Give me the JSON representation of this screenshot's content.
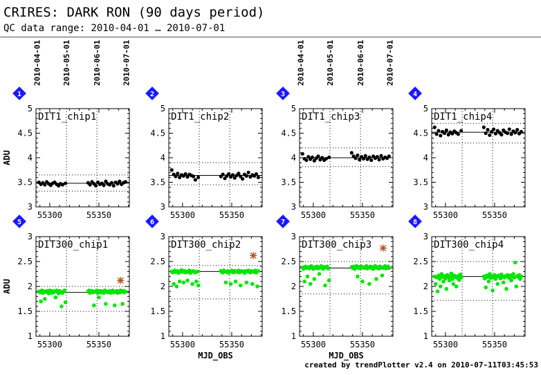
{
  "header": {
    "title": "CRIRES: DARK RON (90 days period)",
    "subtitle": "QC data range: 2010-04-01 … 2010-07-01"
  },
  "footer": "created by trendPlotter v2.4 on 2010-07-11T03:45:53",
  "colors": {
    "black_points": "#000000",
    "green_points": "#00e600",
    "outlier": "#b84a1a",
    "badge": "#1a1aff"
  },
  "chart_data": {
    "type": "scatter",
    "date_ticks": [
      "2010-04-01",
      "2010-05-01",
      "2010-06-01",
      "2010-07-01"
    ],
    "date_tick_mjd": [
      55287,
      55317,
      55348,
      55378
    ],
    "xlim": [
      55286,
      55381
    ],
    "x_ticks": [
      55300,
      55350
    ],
    "x_tick_labels": [
      "55300",
      "55350"
    ],
    "xlabel": "MJD_OBS",
    "ylabel": "ADU",
    "panels": [
      {
        "badge": "1",
        "label": "DIT1_chip1",
        "ylim": [
          3,
          5
        ],
        "yticks": [
          3,
          3.5,
          4,
          4.5,
          5
        ],
        "ytick_labels": [
          "3",
          "3.5",
          "4",
          "4.5",
          "5"
        ],
        "show_date_ticks": true,
        "show_ylabel": true,
        "show_xlabel": false,
        "color": "black",
        "median": 3.48,
        "limits": [
          3.32,
          3.65
        ],
        "outliers": [],
        "x": [
          55289,
          55291,
          55293,
          55295,
          55297,
          55299,
          55301,
          55303,
          55305,
          55307,
          55309,
          55311,
          55313,
          55316,
          55339,
          55341,
          55343,
          55345,
          55347,
          55349,
          55351,
          55353,
          55355,
          55357,
          55359,
          55361,
          55363,
          55365,
          55367,
          55369,
          55371,
          55373,
          55375,
          55377
        ],
        "y": [
          3.5,
          3.46,
          3.49,
          3.45,
          3.51,
          3.47,
          3.44,
          3.48,
          3.5,
          3.46,
          3.43,
          3.47,
          3.45,
          3.48,
          3.49,
          3.45,
          3.51,
          3.47,
          3.43,
          3.5,
          3.46,
          3.48,
          3.44,
          3.52,
          3.47,
          3.45,
          3.49,
          3.43,
          3.5,
          3.47,
          3.52,
          3.46,
          3.49,
          3.51
        ]
      },
      {
        "badge": "2",
        "label": "DIT1_chip2",
        "ylim": [
          3,
          5
        ],
        "yticks": [
          3,
          3.5,
          4,
          4.5,
          5
        ],
        "ytick_labels": [
          "3",
          "3.5",
          "4",
          "4.5",
          "5"
        ],
        "show_date_ticks": false,
        "show_ylabel": false,
        "show_xlabel": false,
        "color": "black",
        "median": 3.64,
        "limits": [
          3.45,
          3.9
        ],
        "outliers": [],
        "x": [
          55289,
          55291,
          55293,
          55295,
          55297,
          55299,
          55301,
          55303,
          55305,
          55307,
          55309,
          55311,
          55313,
          55316,
          55339,
          55341,
          55343,
          55345,
          55347,
          55349,
          55351,
          55353,
          55355,
          55357,
          55359,
          55361,
          55363,
          55365,
          55367,
          55369,
          55371,
          55373,
          55375,
          55377
        ],
        "y": [
          3.75,
          3.66,
          3.62,
          3.68,
          3.6,
          3.65,
          3.63,
          3.67,
          3.61,
          3.66,
          3.64,
          3.62,
          3.55,
          3.6,
          3.62,
          3.66,
          3.58,
          3.63,
          3.67,
          3.61,
          3.65,
          3.59,
          3.64,
          3.68,
          3.62,
          3.57,
          3.66,
          3.63,
          3.7,
          3.61,
          3.65,
          3.63,
          3.67,
          3.6
        ]
      },
      {
        "badge": "3",
        "label": "DIT1_chip3",
        "ylim": [
          3,
          5
        ],
        "yticks": [
          3,
          3.5,
          4,
          4.5,
          5
        ],
        "ytick_labels": [
          "3",
          "3.5",
          "4",
          "4.5",
          "5"
        ],
        "show_date_ticks": true,
        "show_ylabel": false,
        "show_xlabel": false,
        "color": "black",
        "median": 4.0,
        "limits": [
          3.82,
          4.2
        ],
        "outliers": [],
        "x": [
          55289,
          55291,
          55293,
          55295,
          55297,
          55299,
          55301,
          55303,
          55305,
          55307,
          55309,
          55311,
          55313,
          55316,
          55339,
          55341,
          55343,
          55345,
          55347,
          55349,
          55351,
          55353,
          55355,
          55357,
          55359,
          55361,
          55363,
          55365,
          55367,
          55369,
          55371,
          55373,
          55375,
          55377
        ],
        "y": [
          4.08,
          3.98,
          3.95,
          4.02,
          3.97,
          4.01,
          3.94,
          3.99,
          4.03,
          3.96,
          4.0,
          3.95,
          3.98,
          4.01,
          4.1,
          4.03,
          3.99,
          4.05,
          3.96,
          4.02,
          3.98,
          4.04,
          3.97,
          4.01,
          3.95,
          4.03,
          3.99,
          4.02,
          3.96,
          4.04,
          3.98,
          4.01,
          3.99,
          4.03
        ]
      },
      {
        "badge": "4",
        "label": "DIT1_chip4",
        "ylim": [
          3,
          5
        ],
        "yticks": [
          3,
          3.5,
          4,
          4.5,
          5
        ],
        "ytick_labels": [
          "3",
          "3.5",
          "4",
          "4.5",
          "5"
        ],
        "show_date_ticks": false,
        "show_ylabel": false,
        "show_xlabel": false,
        "color": "black",
        "median": 4.52,
        "limits": [
          4.3,
          4.7
        ],
        "outliers": [],
        "x": [
          55289,
          55291,
          55293,
          55295,
          55297,
          55299,
          55301,
          55303,
          55305,
          55307,
          55309,
          55311,
          55313,
          55316,
          55339,
          55341,
          55343,
          55345,
          55347,
          55349,
          55351,
          55353,
          55355,
          55357,
          55359,
          55361,
          55363,
          55365,
          55367,
          55369,
          55371,
          55373,
          55375,
          55377
        ],
        "y": [
          4.62,
          4.48,
          4.55,
          4.45,
          4.53,
          4.5,
          4.56,
          4.47,
          4.52,
          4.49,
          4.54,
          4.51,
          4.48,
          4.55,
          4.62,
          4.5,
          4.57,
          4.46,
          4.53,
          4.58,
          4.49,
          4.55,
          4.51,
          4.47,
          4.56,
          4.52,
          4.5,
          4.58,
          4.48,
          4.54,
          4.51,
          4.57,
          4.49,
          4.53
        ]
      },
      {
        "badge": "5",
        "label": "DIT300_chip1",
        "ylim": [
          1,
          3
        ],
        "yticks": [
          1,
          1.5,
          2,
          2.5,
          3
        ],
        "ytick_labels": [
          "1",
          "1.5",
          "2",
          "2.5",
          "3"
        ],
        "show_date_ticks": false,
        "show_ylabel": true,
        "show_xlabel": false,
        "color": "green",
        "median": 1.88,
        "limits": [
          1.5,
          2.0
        ],
        "outliers": [
          {
            "x": 55372,
            "y": 2.12
          }
        ],
        "x": [
          55289,
          55290,
          55291,
          55292,
          55293,
          55294,
          55295,
          55296,
          55297,
          55298,
          55299,
          55300,
          55301,
          55302,
          55303,
          55304,
          55305,
          55306,
          55307,
          55308,
          55309,
          55310,
          55311,
          55312,
          55313,
          55314,
          55315,
          55316,
          55339,
          55340,
          55341,
          55342,
          55343,
          55344,
          55345,
          55346,
          55347,
          55348,
          55349,
          55350,
          55351,
          55352,
          55353,
          55354,
          55355,
          55356,
          55357,
          55358,
          55359,
          55360,
          55361,
          55362,
          55363,
          55364,
          55365,
          55366,
          55367,
          55368,
          55369,
          55370,
          55371,
          55372,
          55373,
          55374,
          55375,
          55376,
          55377
        ],
        "y": [
          1.9,
          1.88,
          1.7,
          1.92,
          1.87,
          1.9,
          1.75,
          1.89,
          1.91,
          1.88,
          1.86,
          1.92,
          1.89,
          1.87,
          1.91,
          1.88,
          1.9,
          1.78,
          1.92,
          1.89,
          1.86,
          1.91,
          1.88,
          1.6,
          1.87,
          1.9,
          1.92,
          1.68,
          1.9,
          1.92,
          1.87,
          1.89,
          1.91,
          1.88,
          1.62,
          1.9,
          1.89,
          1.92,
          1.87,
          1.78,
          1.91,
          1.88,
          1.9,
          1.89,
          1.87,
          1.92,
          1.65,
          1.9,
          1.88,
          1.89,
          1.91,
          1.87,
          1.9,
          1.92,
          1.88,
          1.62,
          1.89,
          1.91,
          1.87,
          1.9,
          1.88,
          1.92,
          1.89,
          1.65,
          1.91,
          1.88,
          1.9
        ]
      },
      {
        "badge": "6",
        "label": "DIT300_chip2",
        "ylim": [
          1,
          3
        ],
        "yticks": [
          1,
          1.5,
          2,
          2.5,
          3
        ],
        "ytick_labels": [
          "1",
          "1.5",
          "2",
          "2.5",
          "3"
        ],
        "show_date_ticks": false,
        "show_ylabel": false,
        "show_xlabel": true,
        "color": "green",
        "median": 2.3,
        "limits": [
          1.75,
          2.42
        ],
        "outliers": [
          {
            "x": 55372,
            "y": 2.62
          }
        ],
        "x": [
          55289,
          55290,
          55291,
          55292,
          55293,
          55294,
          55295,
          55296,
          55297,
          55298,
          55299,
          55300,
          55301,
          55302,
          55303,
          55304,
          55305,
          55306,
          55307,
          55308,
          55309,
          55310,
          55311,
          55312,
          55313,
          55314,
          55315,
          55316,
          55339,
          55340,
          55341,
          55342,
          55343,
          55344,
          55345,
          55346,
          55347,
          55348,
          55349,
          55350,
          55351,
          55352,
          55353,
          55354,
          55355,
          55356,
          55357,
          55358,
          55359,
          55360,
          55361,
          55362,
          55363,
          55364,
          55365,
          55366,
          55367,
          55368,
          55369,
          55370,
          55371,
          55372,
          55373,
          55374,
          55375,
          55376,
          55377
        ],
        "y": [
          2.3,
          2.28,
          2.05,
          2.32,
          2.29,
          2.0,
          2.31,
          2.27,
          2.1,
          2.3,
          2.33,
          2.29,
          2.08,
          2.31,
          2.28,
          2.3,
          2.12,
          2.29,
          2.32,
          2.27,
          2.3,
          2.05,
          2.31,
          2.29,
          2.28,
          2.1,
          2.3,
          2.02,
          2.31,
          2.29,
          2.28,
          2.32,
          2.3,
          2.08,
          2.29,
          2.31,
          2.27,
          2.3,
          2.05,
          2.32,
          2.29,
          2.28,
          2.31,
          2.1,
          2.3,
          2.29,
          2.32,
          2.28,
          2.02,
          2.31,
          2.3,
          2.29,
          2.27,
          2.31,
          2.08,
          2.3,
          2.32,
          2.29,
          2.28,
          2.31,
          2.05,
          2.3,
          2.29,
          2.32,
          2.28,
          2.0,
          2.31
        ]
      },
      {
        "badge": "7",
        "label": "DIT300_chip3",
        "ylim": [
          1,
          3
        ],
        "yticks": [
          1,
          1.5,
          2,
          2.5,
          3
        ],
        "ytick_labels": [
          "1",
          "1.5",
          "2",
          "2.5",
          "3"
        ],
        "show_date_ticks": false,
        "show_ylabel": false,
        "show_xlabel": true,
        "color": "green",
        "median": 2.37,
        "limits": [
          1.85,
          2.5
        ],
        "outliers": [
          {
            "x": 55371,
            "y": 2.77
          }
        ],
        "x": [
          55289,
          55290,
          55291,
          55292,
          55293,
          55294,
          55295,
          55296,
          55297,
          55298,
          55299,
          55300,
          55301,
          55302,
          55303,
          55304,
          55305,
          55306,
          55307,
          55308,
          55309,
          55310,
          55311,
          55312,
          55313,
          55314,
          55315,
          55316,
          55339,
          55340,
          55341,
          55342,
          55343,
          55344,
          55345,
          55346,
          55347,
          55348,
          55349,
          55350,
          55351,
          55352,
          55353,
          55354,
          55355,
          55356,
          55357,
          55358,
          55359,
          55360,
          55361,
          55362,
          55363,
          55364,
          55365,
          55366,
          55367,
          55368,
          55369,
          55370,
          55371,
          55372,
          55373,
          55374,
          55375,
          55376,
          55377
        ],
        "y": [
          2.38,
          2.35,
          2.1,
          2.4,
          2.37,
          2.2,
          2.39,
          2.36,
          2.05,
          2.41,
          2.38,
          2.35,
          2.15,
          2.39,
          2.37,
          2.4,
          2.36,
          2.25,
          2.38,
          2.41,
          2.37,
          2.35,
          2.39,
          2.02,
          2.38,
          2.4,
          2.36,
          2.12,
          2.39,
          2.37,
          2.4,
          2.35,
          2.38,
          2.41,
          2.2,
          2.37,
          2.39,
          2.36,
          2.4,
          2.1,
          2.38,
          2.37,
          2.39,
          2.41,
          2.36,
          2.38,
          2.05,
          2.4,
          2.37,
          2.39,
          2.35,
          2.38,
          2.41,
          2.15,
          2.37,
          2.39,
          2.36,
          2.4,
          2.38,
          2.22,
          2.37,
          2.39,
          2.41,
          2.36,
          2.38,
          2.4,
          2.37
        ]
      },
      {
        "badge": "8",
        "label": "DIT300_chip4",
        "ylim": [
          1,
          3
        ],
        "yticks": [
          1,
          1.5,
          2,
          2.5,
          3
        ],
        "ytick_labels": [
          "1",
          "1.5",
          "2",
          "2.5",
          "3"
        ],
        "show_date_ticks": false,
        "show_ylabel": false,
        "show_xlabel": false,
        "color": "green",
        "median": 2.2,
        "limits": [
          1.72,
          2.5
        ],
        "outliers": [],
        "x": [
          55289,
          55290,
          55291,
          55292,
          55293,
          55294,
          55295,
          55296,
          55297,
          55298,
          55299,
          55300,
          55301,
          55302,
          55303,
          55304,
          55305,
          55306,
          55307,
          55308,
          55309,
          55310,
          55311,
          55312,
          55313,
          55314,
          55315,
          55316,
          55339,
          55340,
          55341,
          55342,
          55343,
          55344,
          55345,
          55346,
          55347,
          55348,
          55349,
          55350,
          55351,
          55352,
          55353,
          55354,
          55355,
          55356,
          55357,
          55358,
          55359,
          55360,
          55361,
          55362,
          55363,
          55364,
          55365,
          55366,
          55367,
          55368,
          55369,
          55370,
          55371,
          55372,
          55373,
          55374,
          55375,
          55376,
          55377
        ],
        "y": [
          2.2,
          2.05,
          2.18,
          1.9,
          2.22,
          2.15,
          2.0,
          2.25,
          2.19,
          2.1,
          2.21,
          2.16,
          1.95,
          2.23,
          2.18,
          2.12,
          2.2,
          2.26,
          2.15,
          2.05,
          2.22,
          2.19,
          2.0,
          2.17,
          2.21,
          2.13,
          2.24,
          2.18,
          2.2,
          2.16,
          1.98,
          2.22,
          2.19,
          2.1,
          2.25,
          2.17,
          2.21,
          1.92,
          2.18,
          2.23,
          2.15,
          2.2,
          2.05,
          2.22,
          2.19,
          2.16,
          2.24,
          2.2,
          2.08,
          2.18,
          2.21,
          1.95,
          2.23,
          2.19,
          2.17,
          2.22,
          2.12,
          2.2,
          2.25,
          2.18,
          2.48,
          2.0,
          2.21,
          2.19,
          2.23,
          2.15,
          2.2
        ]
      }
    ]
  }
}
